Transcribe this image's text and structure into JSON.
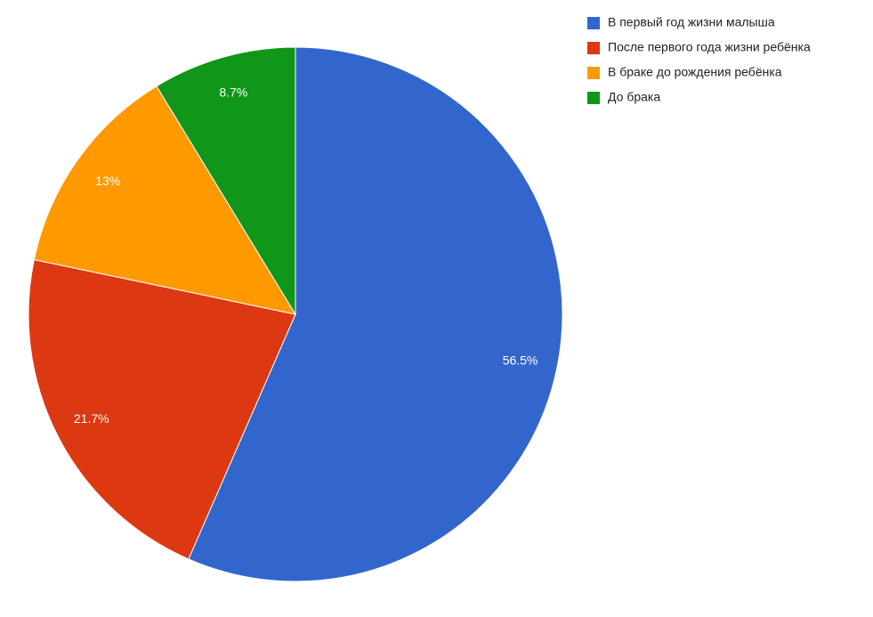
{
  "chart_data": {
    "type": "pie",
    "categories": [
      "В первый год жизни малыша",
      "После первого года жизни ребёнка",
      "В браке до рождения ребёнка",
      "До брака"
    ],
    "values": [
      56.5,
      21.7,
      13,
      8.7
    ],
    "value_labels": [
      "56.5%",
      "21.7%",
      "13%",
      "8.7%"
    ],
    "colors": [
      "#3366cc",
      "#dc3912",
      "#ff9900",
      "#109618"
    ],
    "legend": "top-right"
  }
}
